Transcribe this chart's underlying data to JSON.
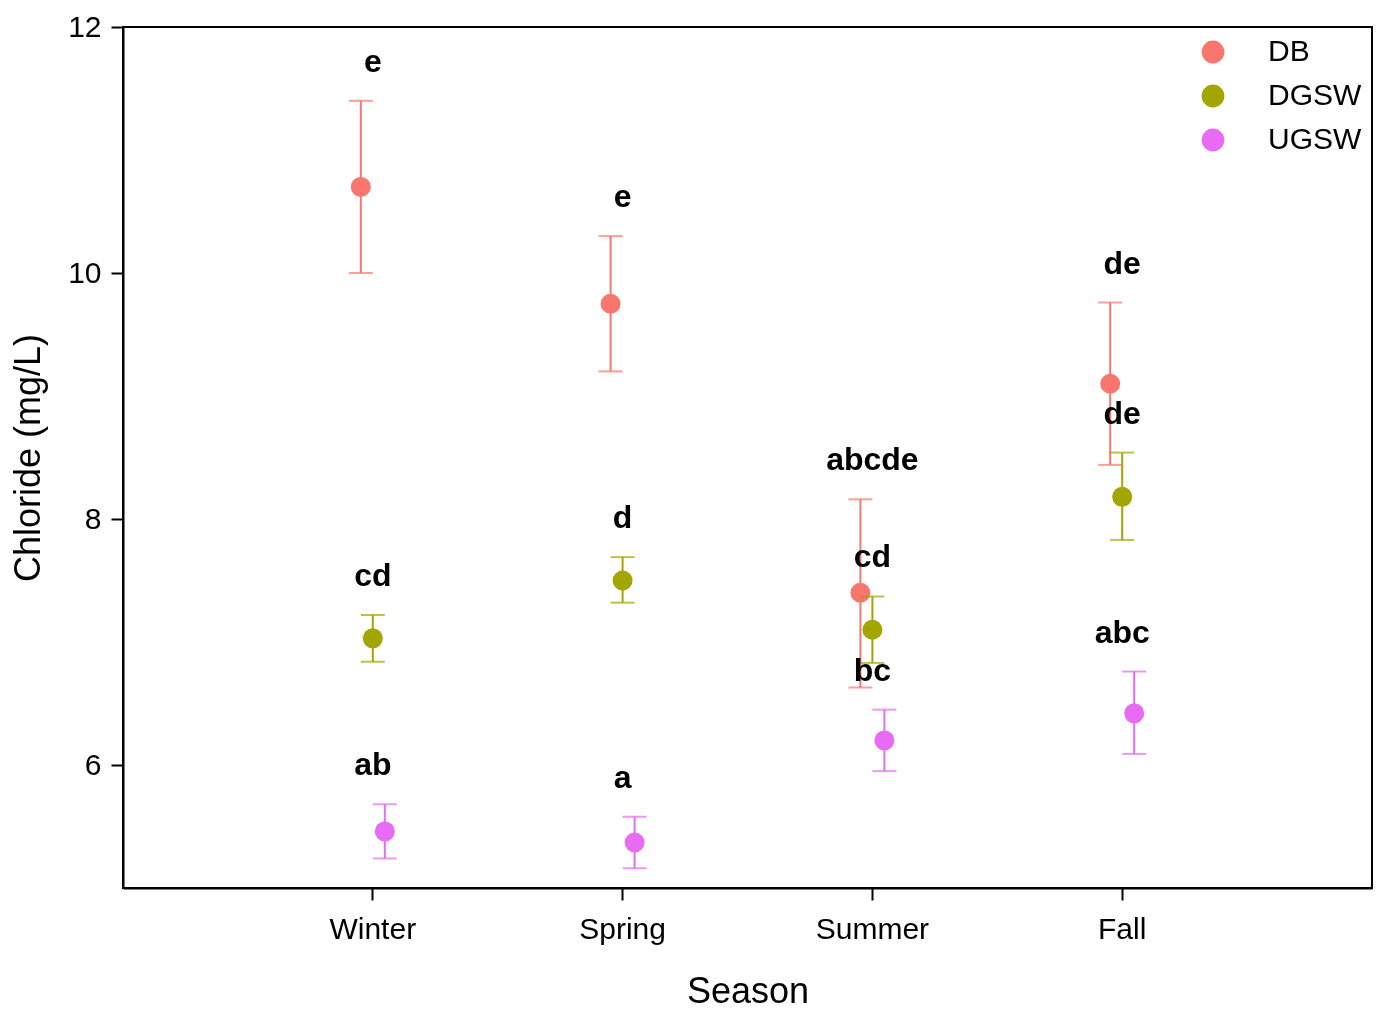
{
  "chart_data": {
    "type": "scatter",
    "xlabel": "Season",
    "ylabel": "Chloride (mg/L)",
    "categories": [
      "Winter",
      "Spring",
      "Summer",
      "Fall"
    ],
    "ylim": [
      5,
      12
    ],
    "yticks": [
      6,
      8,
      10,
      12
    ],
    "grid": false,
    "legend": "top right",
    "marker": "circle",
    "series": [
      {
        "name": "DB",
        "color": "#f8766d",
        "values": [
          10.7,
          9.75,
          7.4,
          9.1
        ],
        "errors": [
          [
            10.0,
            11.4
          ],
          [
            9.2,
            10.3
          ],
          [
            6.63,
            8.16
          ],
          [
            8.44,
            9.76
          ]
        ]
      },
      {
        "name": "DGSW",
        "color": "#a3a500",
        "values": [
          7.03,
          7.5,
          7.1,
          8.18
        ],
        "errors": [
          [
            6.84,
            7.22
          ],
          [
            7.32,
            7.69
          ],
          [
            6.83,
            7.37
          ],
          [
            7.83,
            8.54
          ]
        ]
      },
      {
        "name": "UGSW",
        "color": "#e76bf3",
        "values": [
          5.46,
          5.37,
          6.2,
          6.42
        ],
        "errors": [
          [
            5.24,
            5.68
          ],
          [
            5.16,
            5.58
          ],
          [
            5.95,
            6.45
          ],
          [
            6.09,
            6.76
          ]
        ]
      }
    ],
    "annotations": [
      {
        "text": "e",
        "x": "Winter",
        "y": 11.4
      },
      {
        "text": "cd",
        "x": "Winter",
        "y": 7.22
      },
      {
        "text": "ab",
        "x": "Winter",
        "y": 5.68
      },
      {
        "text": "e",
        "x": "Spring",
        "y": 10.3
      },
      {
        "text": "d",
        "x": "Spring",
        "y": 7.69
      },
      {
        "text": "a",
        "x": "Spring",
        "y": 5.58
      },
      {
        "text": "abcde",
        "x": "Summer",
        "y": 8.16
      },
      {
        "text": "cd",
        "x": "Summer",
        "y": 7.37
      },
      {
        "text": "bc",
        "x": "Summer",
        "y": 6.45
      },
      {
        "text": "de",
        "x": "Fall",
        "y": 9.76
      },
      {
        "text": "de",
        "x": "Fall",
        "y": 8.54
      },
      {
        "text": "abc",
        "x": "Fall",
        "y": 6.76
      }
    ]
  }
}
